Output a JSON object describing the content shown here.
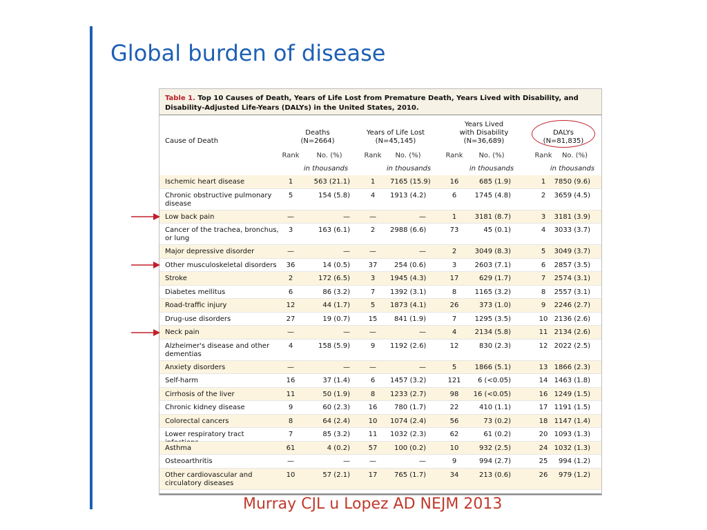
{
  "slide": {
    "title": "Global burden of disease",
    "citation": "Murray CJL u Lopez AD NEJM 2013",
    "accent_color": "#1d5fb4",
    "highlight_color": "#c0202a"
  },
  "table": {
    "caption_lead": "Table 1.",
    "caption_text": "Top 10 Causes of Death, Years of Life Lost from Premature Death, Years Lived with Disability, and Disability-Adjusted Life-Years (DALYs) in the United States, 2010.",
    "columns": {
      "cause": "Cause of Death",
      "deaths": {
        "title": "Deaths",
        "n": "(N=2664)"
      },
      "yll": {
        "title": "Years of Life Lost",
        "n": "(N=45,145)"
      },
      "yld": {
        "title_line1": "Years Lived",
        "title_line2": "with Disability",
        "n": "(N=36,689)"
      },
      "dalys": {
        "title": "DALYs",
        "n": "(N=81,835)"
      }
    },
    "sub_rank": "Rank",
    "sub_no": "No. (%)",
    "unit": "in thousands",
    "arrow_marked_causes": [
      "Low back pain",
      "Other musculoskeletal disorders",
      "Neck pain"
    ],
    "rows": [
      {
        "cause": "Ischemic heart disease",
        "deaths_rank": "1",
        "deaths_no": "563 (21.1)",
        "yll_rank": "1",
        "yll_no": "7165 (15.9)",
        "yld_rank": "16",
        "yld_no": "685 (1.9)",
        "daly_rank": "1",
        "daly_no": "7850 (9.6)"
      },
      {
        "cause": "Chronic obstructive pulmonary disease",
        "deaths_rank": "5",
        "deaths_no": "154 (5.8)",
        "yll_rank": "4",
        "yll_no": "1913 (4.2)",
        "yld_rank": "6",
        "yld_no": "1745 (4.8)",
        "daly_rank": "2",
        "daly_no": "3659 (4.5)"
      },
      {
        "cause": "Low back pain",
        "deaths_rank": "—",
        "deaths_no": "—",
        "yll_rank": "—",
        "yll_no": "—",
        "yld_rank": "1",
        "yld_no": "3181 (8.7)",
        "daly_rank": "3",
        "daly_no": "3181 (3.9)"
      },
      {
        "cause": "Cancer of the trachea, bronchus, or lung",
        "deaths_rank": "3",
        "deaths_no": "163 (6.1)",
        "yll_rank": "2",
        "yll_no": "2988 (6.6)",
        "yld_rank": "73",
        "yld_no": "45 (0.1)",
        "daly_rank": "4",
        "daly_no": "3033 (3.7)"
      },
      {
        "cause": "Major depressive disorder",
        "deaths_rank": "—",
        "deaths_no": "—",
        "yll_rank": "—",
        "yll_no": "—",
        "yld_rank": "2",
        "yld_no": "3049 (8.3)",
        "daly_rank": "5",
        "daly_no": "3049 (3.7)"
      },
      {
        "cause": "Other musculoskeletal disorders",
        "deaths_rank": "36",
        "deaths_no": "14 (0.5)",
        "yll_rank": "37",
        "yll_no": "254 (0.6)",
        "yld_rank": "3",
        "yld_no": "2603 (7.1)",
        "daly_rank": "6",
        "daly_no": "2857 (3.5)"
      },
      {
        "cause": "Stroke",
        "deaths_rank": "2",
        "deaths_no": "172 (6.5)",
        "yll_rank": "3",
        "yll_no": "1945 (4.3)",
        "yld_rank": "17",
        "yld_no": "629 (1.7)",
        "daly_rank": "7",
        "daly_no": "2574 (3.1)"
      },
      {
        "cause": "Diabetes mellitus",
        "deaths_rank": "6",
        "deaths_no": "86 (3.2)",
        "yll_rank": "7",
        "yll_no": "1392 (3.1)",
        "yld_rank": "8",
        "yld_no": "1165 (3.2)",
        "daly_rank": "8",
        "daly_no": "2557 (3.1)"
      },
      {
        "cause": "Road-traffic injury",
        "deaths_rank": "12",
        "deaths_no": "44 (1.7)",
        "yll_rank": "5",
        "yll_no": "1873 (4.1)",
        "yld_rank": "26",
        "yld_no": "373 (1.0)",
        "daly_rank": "9",
        "daly_no": "2246 (2.7)"
      },
      {
        "cause": "Drug-use disorders",
        "deaths_rank": "27",
        "deaths_no": "19 (0.7)",
        "yll_rank": "15",
        "yll_no": "841 (1.9)",
        "yld_rank": "7",
        "yld_no": "1295 (3.5)",
        "daly_rank": "10",
        "daly_no": "2136 (2.6)"
      },
      {
        "cause": "Neck pain",
        "deaths_rank": "—",
        "deaths_no": "—",
        "yll_rank": "—",
        "yll_no": "—",
        "yld_rank": "4",
        "yld_no": "2134 (5.8)",
        "daly_rank": "11",
        "daly_no": "2134 (2.6)"
      },
      {
        "cause": "Alzheimer's disease and other dementias",
        "deaths_rank": "4",
        "deaths_no": "158 (5.9)",
        "yll_rank": "9",
        "yll_no": "1192 (2.6)",
        "yld_rank": "12",
        "yld_no": "830 (2.3)",
        "daly_rank": "12",
        "daly_no": "2022 (2.5)"
      },
      {
        "cause": "Anxiety disorders",
        "deaths_rank": "—",
        "deaths_no": "—",
        "yll_rank": "—",
        "yll_no": "—",
        "yld_rank": "5",
        "yld_no": "1866 (5.1)",
        "daly_rank": "13",
        "daly_no": "1866 (2.3)"
      },
      {
        "cause": "Self-harm",
        "deaths_rank": "16",
        "deaths_no": "37 (1.4)",
        "yll_rank": "6",
        "yll_no": "1457 (3.2)",
        "yld_rank": "121",
        "yld_no": "6 (<0.05)",
        "daly_rank": "14",
        "daly_no": "1463 (1.8)"
      },
      {
        "cause": "Cirrhosis of the liver",
        "deaths_rank": "11",
        "deaths_no": "50 (1.9)",
        "yll_rank": "8",
        "yll_no": "1233 (2.7)",
        "yld_rank": "98",
        "yld_no": "16 (<0.05)",
        "daly_rank": "16",
        "daly_no": "1249 (1.5)"
      },
      {
        "cause": "Chronic kidney disease",
        "deaths_rank": "9",
        "deaths_no": "60 (2.3)",
        "yll_rank": "16",
        "yll_no": "780 (1.7)",
        "yld_rank": "22",
        "yld_no": "410 (1.1)",
        "daly_rank": "17",
        "daly_no": "1191 (1.5)"
      },
      {
        "cause": "Colorectal cancers",
        "deaths_rank": "8",
        "deaths_no": "64 (2.4)",
        "yll_rank": "10",
        "yll_no": "1074 (2.4)",
        "yld_rank": "56",
        "yld_no": "73 (0.2)",
        "daly_rank": "18",
        "daly_no": "1147 (1.4)"
      },
      {
        "cause": "Lower respiratory tract infections",
        "deaths_rank": "7",
        "deaths_no": "85 (3.2)",
        "yll_rank": "11",
        "yll_no": "1032 (2.3)",
        "yld_rank": "62",
        "yld_no": "61 (0.2)",
        "daly_rank": "20",
        "daly_no": "1093 (1.3)"
      },
      {
        "cause": "Asthma",
        "deaths_rank": "61",
        "deaths_no": "4 (0.2)",
        "yll_rank": "57",
        "yll_no": "100 (0.2)",
        "yld_rank": "10",
        "yld_no": "932 (2.5)",
        "daly_rank": "24",
        "daly_no": "1032 (1.3)"
      },
      {
        "cause": "Osteoarthritis",
        "deaths_rank": "—",
        "deaths_no": "—",
        "yll_rank": "—",
        "yll_no": "—",
        "yld_rank": "9",
        "yld_no": "994 (2.7)",
        "daly_rank": "25",
        "daly_no": "994 (1.2)"
      },
      {
        "cause": "Other cardiovascular and circulatory diseases",
        "deaths_rank": "10",
        "deaths_no": "57 (2.1)",
        "yll_rank": "17",
        "yll_no": "765 (1.7)",
        "yld_rank": "34",
        "yld_no": "213 (0.6)",
        "daly_rank": "26",
        "daly_no": "979 (1.2)"
      }
    ]
  }
}
